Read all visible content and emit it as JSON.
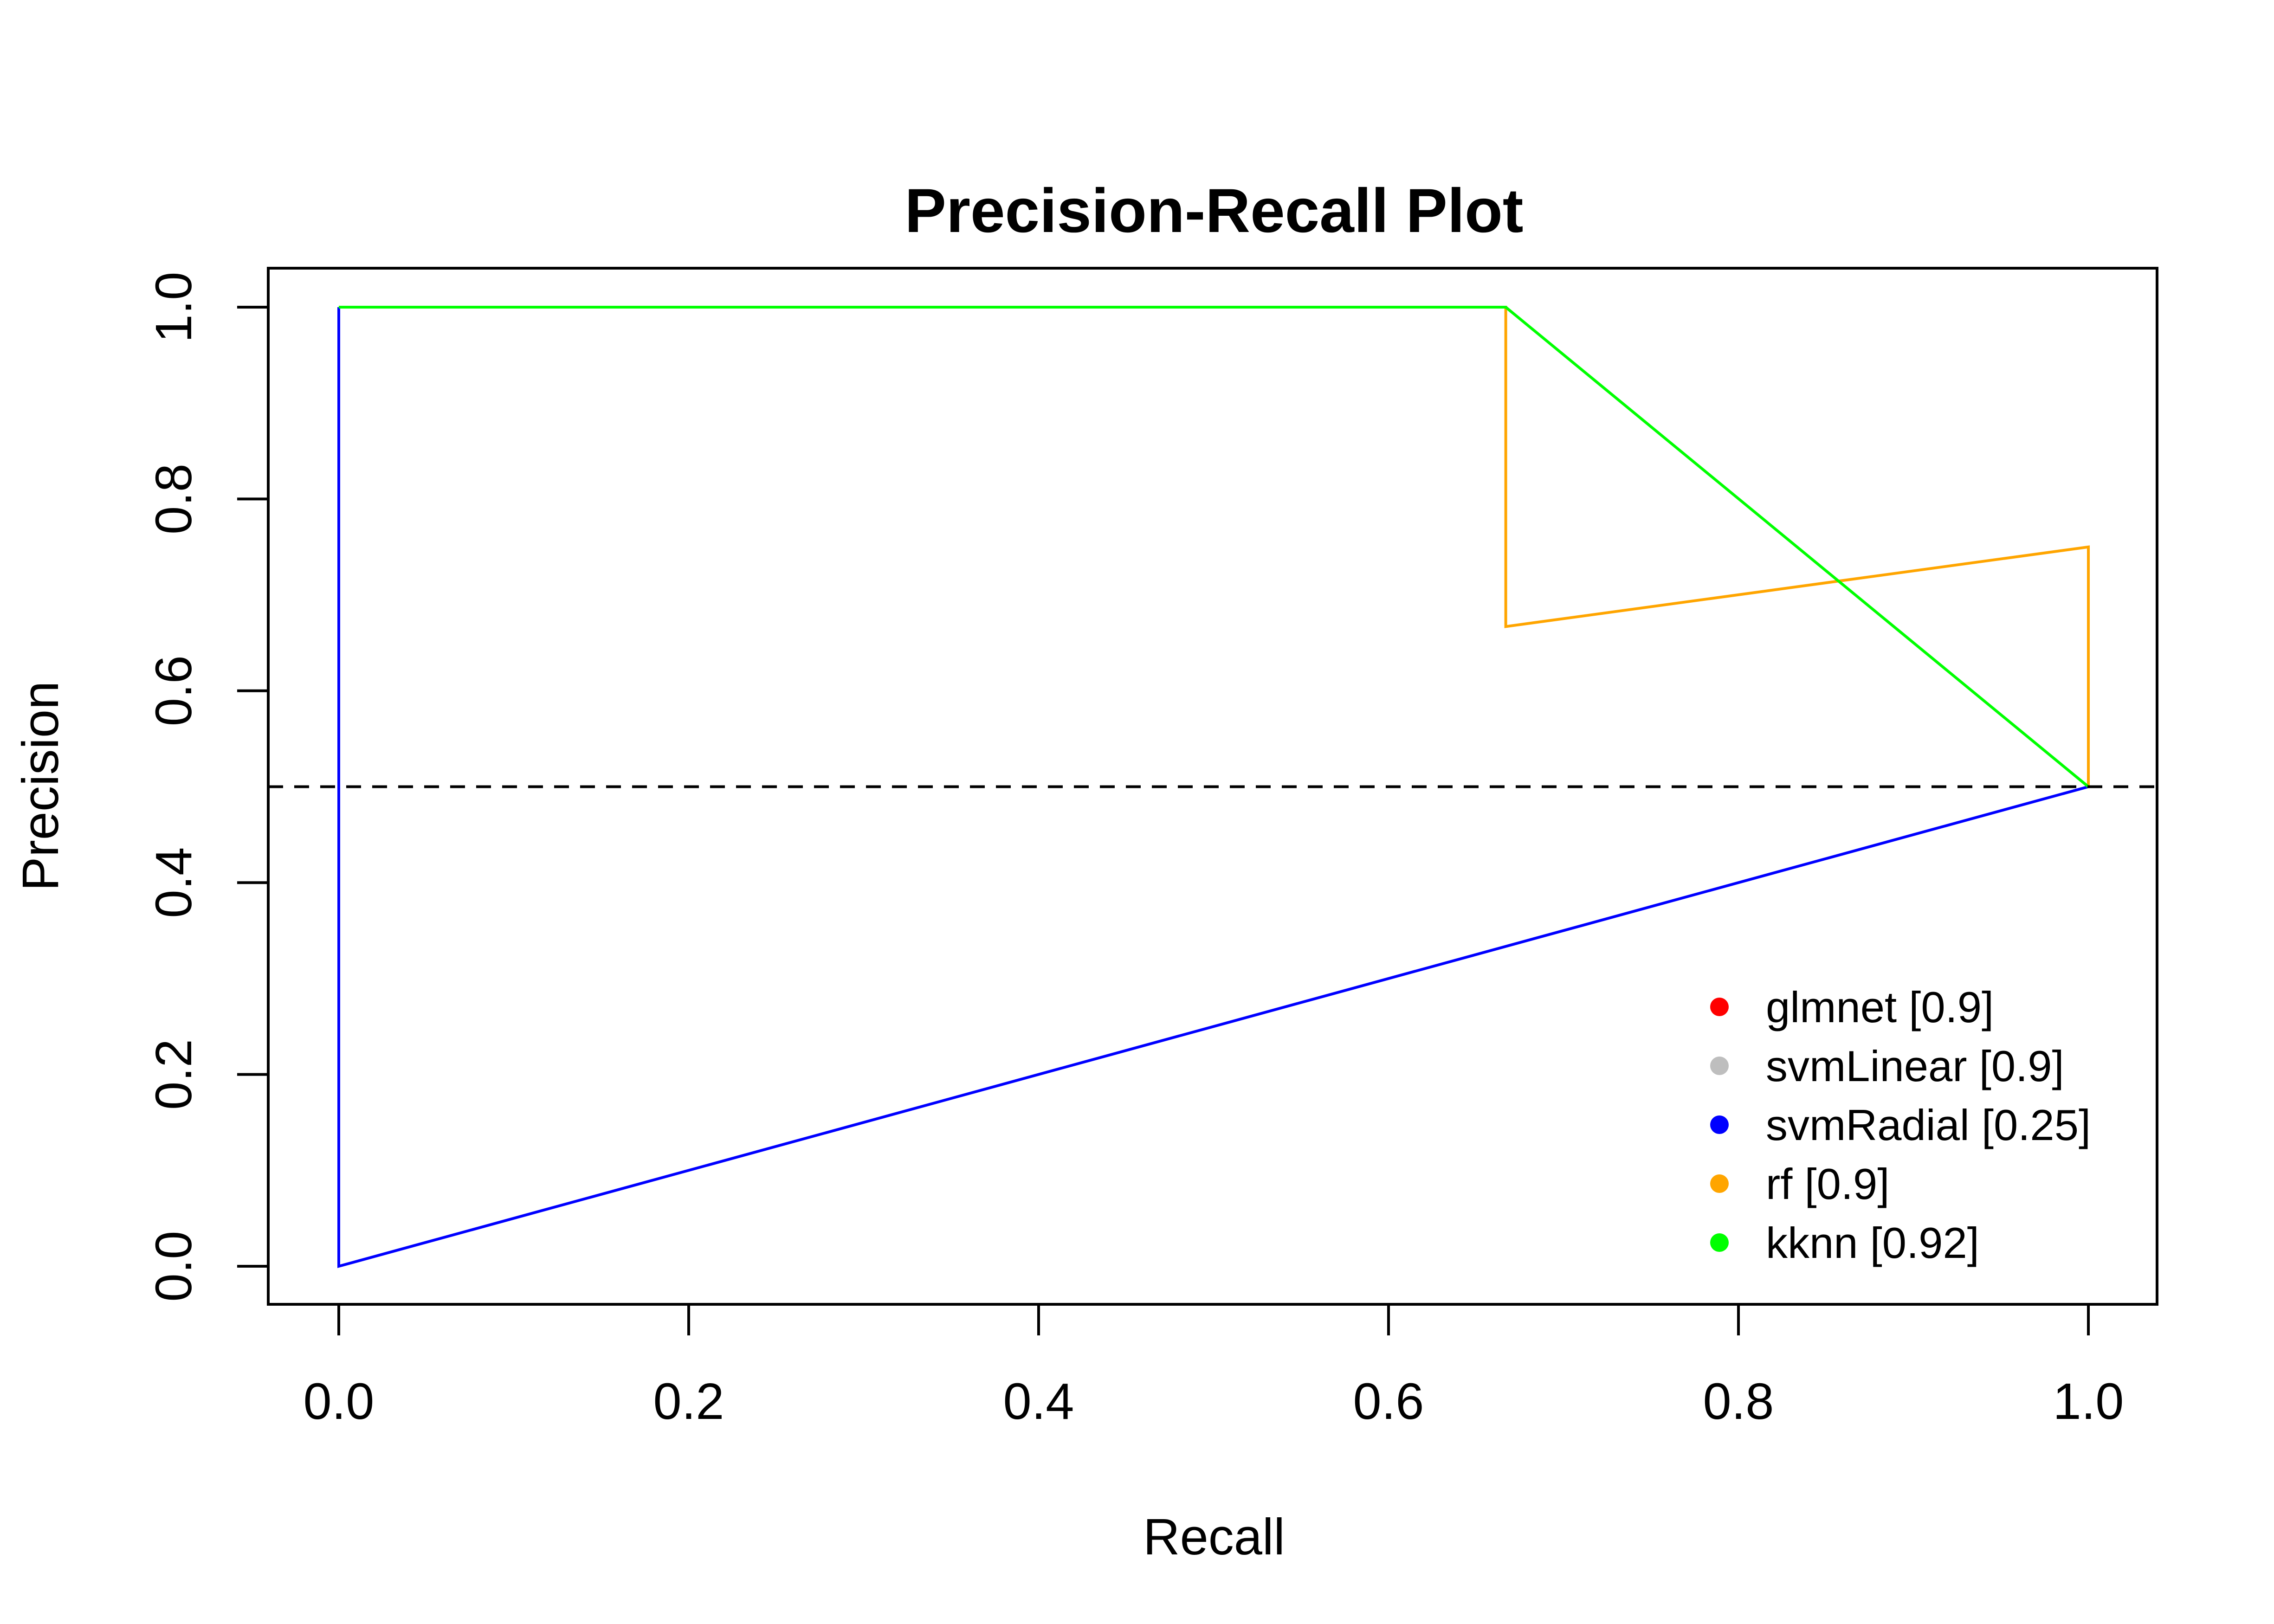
{
  "chart_data": {
    "type": "line",
    "title": "Precision-Recall Plot",
    "xlabel": "Recall",
    "ylabel": "Precision",
    "xlim": [
      0,
      1
    ],
    "ylim": [
      0,
      1
    ],
    "x_ticks": [
      "0.0",
      "0.2",
      "0.4",
      "0.6",
      "0.8",
      "1.0"
    ],
    "y_ticks": [
      "0.0",
      "0.2",
      "0.4",
      "0.6",
      "0.8",
      "1.0"
    ],
    "grid": false,
    "legend_position": "bottom-right",
    "baseline": {
      "y": 0.5,
      "style": "dashed",
      "color": "#000000"
    },
    "series": [
      {
        "name": "glmnet [0.9]",
        "color": "#ff0000",
        "x": [],
        "y": []
      },
      {
        "name": "svmLinear [0.9]",
        "color": "#bebebe",
        "x": [],
        "y": []
      },
      {
        "name": "svmRadial [0.25]",
        "color": "#0000ff",
        "x": [
          0,
          0,
          1
        ],
        "y": [
          1.0,
          0.0,
          0.5
        ]
      },
      {
        "name": "rf [0.9]",
        "color": "#ffa500",
        "x": [
          0,
          0.667,
          0.667,
          1,
          1
        ],
        "y": [
          1.0,
          1.0,
          0.667,
          0.75,
          0.5
        ]
      },
      {
        "name": "kknn [0.92]",
        "color": "#00ff00",
        "x": [
          0,
          0.667,
          1
        ],
        "y": [
          1.0,
          1.0,
          0.5
        ]
      }
    ]
  }
}
